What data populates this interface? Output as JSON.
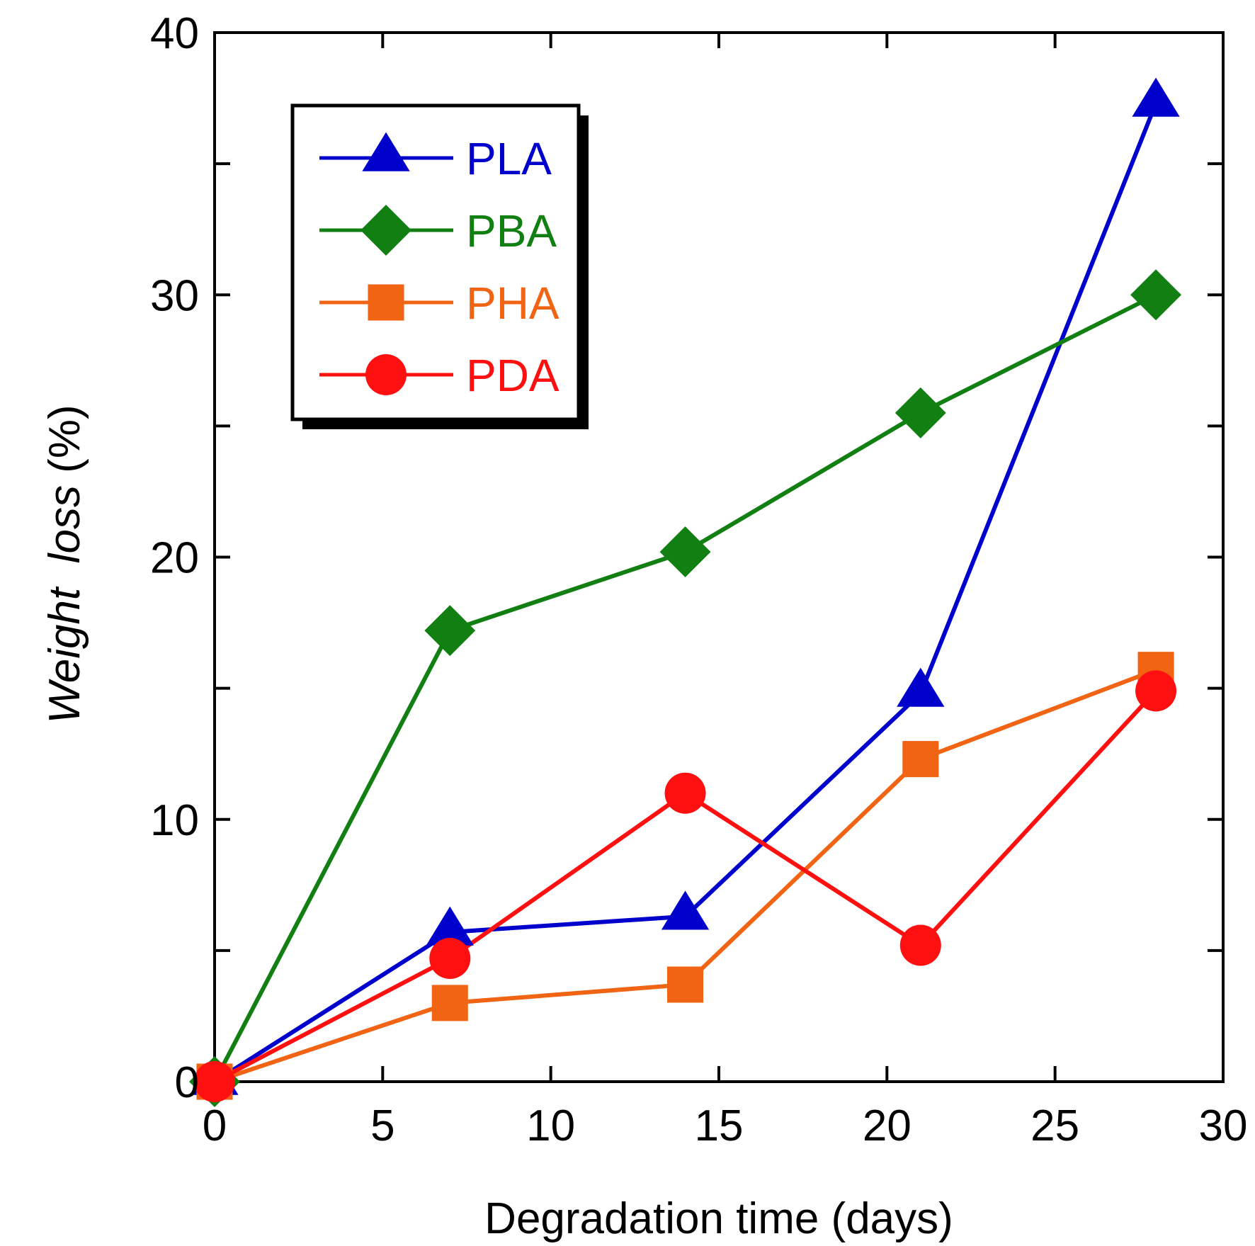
{
  "chart_data": {
    "type": "line",
    "title": "",
    "xlabel": "Degradation time (days)",
    "ylabel_main": "Weight  loss",
    "ylabel_suffix": " (%)",
    "xlim": [
      0,
      30
    ],
    "ylim": [
      0,
      40
    ],
    "x_ticks": [
      0,
      5,
      10,
      15,
      20,
      25,
      30
    ],
    "y_ticks": [
      0,
      10,
      20,
      30,
      40
    ],
    "y_minor_ticks": [
      5,
      15,
      25,
      35
    ],
    "grid": false,
    "legend_position": "top-left",
    "x": [
      0,
      7,
      14,
      21,
      28
    ],
    "series": [
      {
        "name": "PLA",
        "color": "#0000cc",
        "marker": "triangle",
        "values": [
          0,
          5.7,
          6.3,
          14.8,
          37.3
        ]
      },
      {
        "name": "PBA",
        "color": "#127f12",
        "marker": "diamond",
        "values": [
          0,
          17.2,
          20.2,
          25.5,
          30.0
        ]
      },
      {
        "name": "PHA",
        "color": "#f06414",
        "marker": "square",
        "values": [
          0,
          3.0,
          3.7,
          12.3,
          15.7
        ]
      },
      {
        "name": "PDA",
        "color": "#ff1010",
        "marker": "circle",
        "values": [
          0,
          4.7,
          11.0,
          5.2,
          14.9
        ]
      }
    ]
  }
}
